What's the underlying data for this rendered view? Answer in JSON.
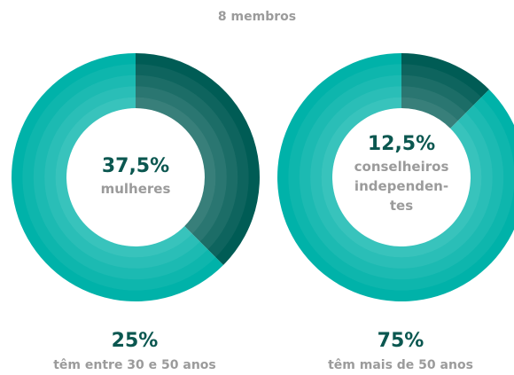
{
  "title": "8 membros",
  "chart_data": [
    {
      "type": "pie",
      "categories": [
        "mulheres",
        null
      ],
      "values": [
        37.5,
        62.5
      ],
      "value_labels": [
        "37,5%",
        null
      ],
      "colors": [
        "#005c55",
        "#00b2a9"
      ]
    },
    {
      "type": "pie",
      "categories": [
        "conselheiros independen-tes",
        null
      ],
      "values": [
        12.5,
        87.5
      ],
      "value_labels": [
        "12,5%",
        null
      ],
      "colors": [
        "#005c55",
        "#00b2a9"
      ]
    }
  ],
  "stats": [
    {
      "value": "25%",
      "label": "têm entre 30 e 50 anos"
    },
    {
      "value": "75%",
      "label": "têm mais de 50 anos"
    }
  ]
}
